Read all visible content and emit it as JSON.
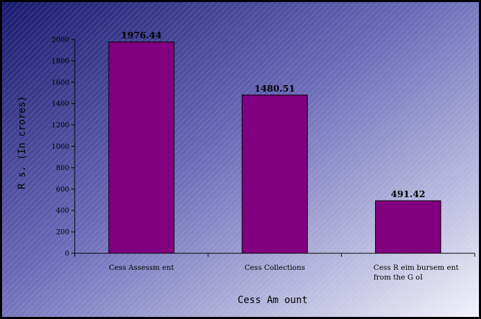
{
  "chart_data": {
    "type": "bar",
    "title": "",
    "xlabel": "Cess Am ount",
    "ylabel": "R s. (In crores)",
    "categories": [
      [
        "Cess Assessm ent"
      ],
      [
        "Cess Collections"
      ],
      [
        "Cess R eim bursem ent",
        "from the G oI"
      ]
    ],
    "values": [
      1976.44,
      1480.51,
      491.42
    ],
    "data_labels": [
      "1976.44",
      "1480.51",
      "491.42"
    ],
    "ylim": [
      0,
      2000
    ],
    "yticks": [
      0,
      200,
      400,
      600,
      800,
      1000,
      1200,
      1400,
      1600,
      1800,
      2000
    ],
    "grid": false,
    "legend": "none"
  },
  "colors": {
    "bar_fill": "#800080",
    "bar_stroke": "#000000",
    "background_dark": "#1a1a6e",
    "background_mid": "#6a6ab8",
    "background_light": "#f2f2fa"
  }
}
